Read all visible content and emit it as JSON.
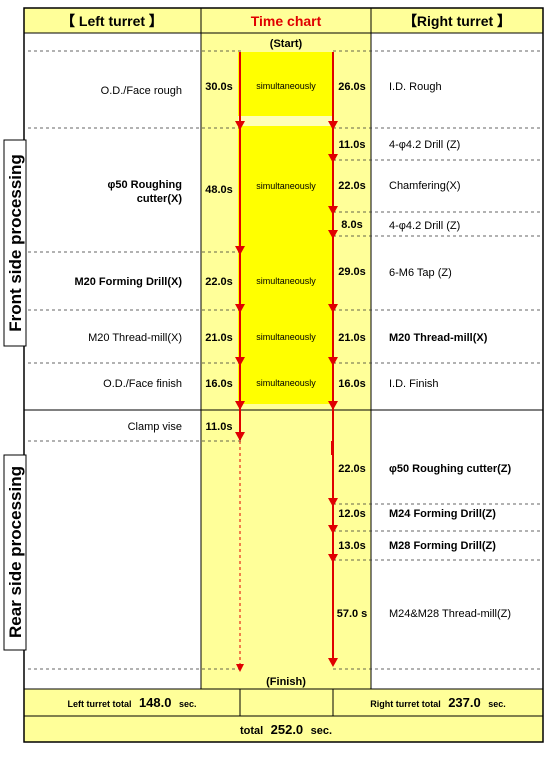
{
  "header": {
    "left": "【 Left turret 】",
    "center": "Time chart",
    "right": "【Right turret 】"
  },
  "colors": {
    "header_bg": "#FFFF99",
    "title_red": "#E00000",
    "active_yellow": "#FFFF00",
    "idle_yellow": "#FFFF99",
    "arrow_red": "#E00000",
    "line_color": "#000000"
  },
  "start_label": "(Start)",
  "finish_label": "(Finish)",
  "sections": {
    "front": "Front side processing",
    "rear": "Rear side processing"
  },
  "simultaneous_label": "simultaneously",
  "left_ops": [
    {
      "label": "O.D./Face rough",
      "time": "30.0s"
    },
    {
      "label": "φ50 Roughing cutter(X)",
      "line1": "φ50 Roughing",
      "line2": "cutter(X)",
      "time": "48.0s"
    },
    {
      "label": "M20 Forming Drill(X)",
      "time": "22.0s"
    },
    {
      "label": "M20 Thread-mill(X)",
      "time": "21.0s"
    },
    {
      "label": "O.D./Face finish",
      "time": "16.0s"
    },
    {
      "label": "Clamp vise",
      "time": "11.0s"
    }
  ],
  "right_ops": [
    {
      "label": "I.D. Rough",
      "time": "26.0s"
    },
    {
      "label": "4-φ4.2 Drill (Z)",
      "time": "11.0s"
    },
    {
      "label": "Chamfering(X)",
      "time": "22.0s"
    },
    {
      "label": "4-φ4.2 Drill (Z)",
      "time": "8.0s"
    },
    {
      "label": "6-M6 Tap (Z)",
      "time": "29.0s"
    },
    {
      "label": "M20 Thread-mill(X)",
      "time": "21.0s"
    },
    {
      "label": "I.D. Finish",
      "time": "16.0s"
    },
    {
      "label": "φ50 Roughing cutter(Z)",
      "time": "22.0s"
    },
    {
      "label": "M24 Forming Drill(Z)",
      "time": "12.0s"
    },
    {
      "label": "M28 Forming Drill(Z)",
      "time": "13.0s"
    },
    {
      "label": "M24&M28 Thread-mill(Z)",
      "time": "57.0 s"
    }
  ],
  "totals": {
    "left_label": "Left turret total",
    "left_value": "148.0",
    "right_label": "Right turret total",
    "right_value": "237.0",
    "unit": "sec.",
    "grand_label": "total",
    "grand_value": "252.0",
    "grand_unit": "sec."
  }
}
